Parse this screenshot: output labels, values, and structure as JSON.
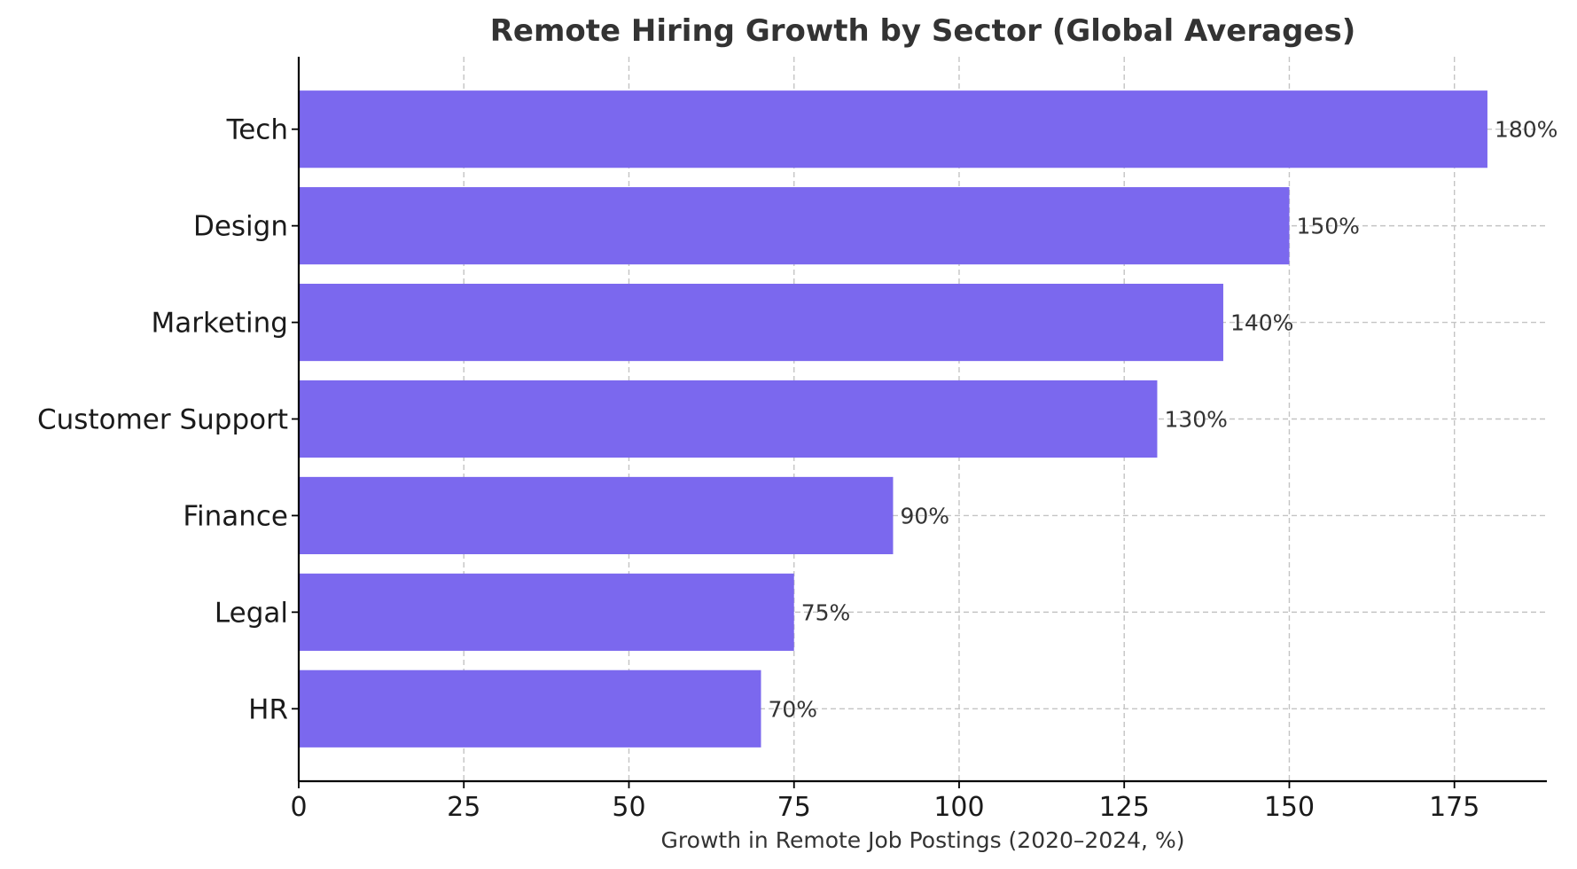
{
  "chart_data": {
    "type": "bar",
    "orientation": "horizontal",
    "title": "Remote Hiring Growth by Sector (Global Averages)",
    "xlabel": "Growth in Remote Job Postings (2020–2024, %)",
    "ylabel": "",
    "categories": [
      "Tech",
      "Design",
      "Marketing",
      "Customer Support",
      "Finance",
      "Legal",
      "HR"
    ],
    "values": [
      180,
      150,
      140,
      130,
      90,
      75,
      70
    ],
    "data_labels": [
      "180%",
      "150%",
      "140%",
      "130%",
      "90%",
      "75%",
      "70%"
    ],
    "xlim": [
      0,
      189
    ],
    "xticks": [
      0,
      25,
      50,
      75,
      100,
      125,
      150,
      175
    ],
    "xtick_labels": [
      "0",
      "25",
      "50",
      "75",
      "100",
      "125",
      "150",
      "175"
    ],
    "grid": true,
    "bar_color": "#7b68ee"
  }
}
